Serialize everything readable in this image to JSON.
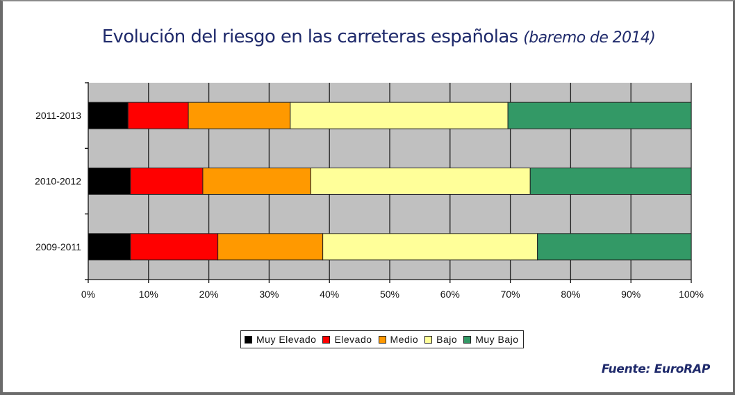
{
  "chart_data": {
    "type": "bar",
    "orientation": "horizontal",
    "stacked": "percent",
    "title": "Evolución del riesgo en las carreteras españolas",
    "subtitle": "(baremo de 2014)",
    "xlabel": "",
    "ylabel": "",
    "xlim": [
      0,
      100
    ],
    "x_ticks": [
      "0%",
      "10%",
      "20%",
      "30%",
      "40%",
      "50%",
      "60%",
      "70%",
      "80%",
      "90%",
      "100%"
    ],
    "grid": true,
    "legend_position": "bottom",
    "categories": [
      "2011-2013",
      "2010-2012",
      "2009-2011"
    ],
    "series": [
      {
        "name": "Muy Elevado",
        "color": "#000000",
        "values": [
          6.6,
          7.0,
          7.0
        ]
      },
      {
        "name": "Elevado",
        "color": "#ff0000",
        "values": [
          10.0,
          12.0,
          14.5
        ]
      },
      {
        "name": "Medio",
        "color": "#ff9900",
        "values": [
          16.9,
          17.9,
          17.4
        ]
      },
      {
        "name": "Bajo",
        "color": "#ffff99",
        "values": [
          36.1,
          36.4,
          35.6
        ]
      },
      {
        "name": "Muy Bajo",
        "color": "#339966",
        "values": [
          30.4,
          26.7,
          25.5
        ]
      }
    ],
    "source": "Fuente: EuroRAP"
  },
  "colors": {
    "title": "#1f2a6b",
    "plot_background": "#c0c0c0",
    "gridline": "#222222"
  }
}
